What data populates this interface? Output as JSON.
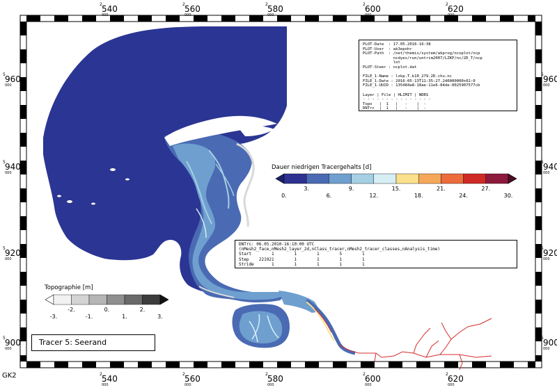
{
  "map": {
    "projection_label": "GK2",
    "tracer_label": "Tracer 5: Seerand",
    "x_ticks": [
      {
        "top": "2",
        "main": "540",
        "bottom": "000"
      },
      {
        "top": "2",
        "main": "560",
        "bottom": "000"
      },
      {
        "top": "2",
        "main": "580",
        "bottom": "000"
      },
      {
        "top": "2",
        "main": "600",
        "bottom": "000"
      },
      {
        "top": "2",
        "main": "620",
        "bottom": "000"
      }
    ],
    "y_ticks": [
      {
        "top": "5",
        "main": "960",
        "bottom": "000"
      },
      {
        "top": "5",
        "main": "940",
        "bottom": "000"
      },
      {
        "top": "5",
        "main": "920",
        "bottom": "000"
      },
      {
        "top": "5",
        "main": "900",
        "bottom": "000"
      }
    ]
  },
  "colors": {
    "water_base": "#2b3593",
    "land_fill": "#d9d9d9",
    "river_red": "#d42b2b"
  },
  "plot_info": {
    "rows": [
      "PLOT-Date  : 17.05.2016-16:38",
      "PLOT-User  : ak3epohr",
      "PLOT-Path  : /net/themis/system/akprog/ncoplot/ncp",
      "             ncdyes/run/untrim2007/LZKP/nc/2D_T/ncp",
      "             lot",
      "PLOT-Steer : ncplot.dat",
      "",
      "FILE_1-Name : lzkp.T.k10_279.2D.chu.nc",
      "FILE_1-Date : 2016-05-13T11:35:27.240000000+02:0",
      "FILE_1-UUID : 135484a8-18ae-11e6-84de-0025907577cb",
      "",
      "Layer | File | HLIMIT | NDRS",
      "- - - - - - - - - - - - - - -",
      "Topo   |  1   |   -    |  -",
      "DNTrc  |  1   |   -    |  -"
    ]
  },
  "run_info": {
    "rows": [
      "DNTrc: 06.05.2010-16:10:00 UTC",
      "(nMesh2_face,nMesh2_layer_2d,nClass_tracer,nMesh2_tracer_classes,nAnalysis_time)",
      "Start        1        1        1        5        1",
      "Step    221921        1        1        1        1",
      "Stride       1        1        1        1        1"
    ]
  },
  "tracer_legend": {
    "title": "Dauer niedrigen Tracergehalts [d]",
    "colors": [
      "#2e3190",
      "#4a6ab3",
      "#6e9fcf",
      "#a5cfe3",
      "#d7eef5",
      "#fbe08e",
      "#f6a85a",
      "#ec6c3c",
      "#cf2a26",
      "#8c1a3c"
    ],
    "under_color": "#1c1f6b",
    "over_color": "#4a0d24",
    "labels_bottom": [
      "0.",
      "6.",
      "12.",
      "18.",
      "24.",
      "30."
    ],
    "labels_top": [
      "3.",
      "9.",
      "15.",
      "21.",
      "27."
    ]
  },
  "topo_legend": {
    "title": "Topographie [m]",
    "colors": [
      "#f2f2f2",
      "#d4d4d4",
      "#b5b5b5",
      "#8f8f8f",
      "#6a6a6a",
      "#3d3d3d"
    ],
    "under_color": "#ffffff",
    "over_color": "#111111",
    "labels_bottom": [
      "-3.",
      "-1.",
      "1.",
      "3."
    ],
    "labels_top": [
      "-2.",
      "0.",
      "2."
    ]
  }
}
